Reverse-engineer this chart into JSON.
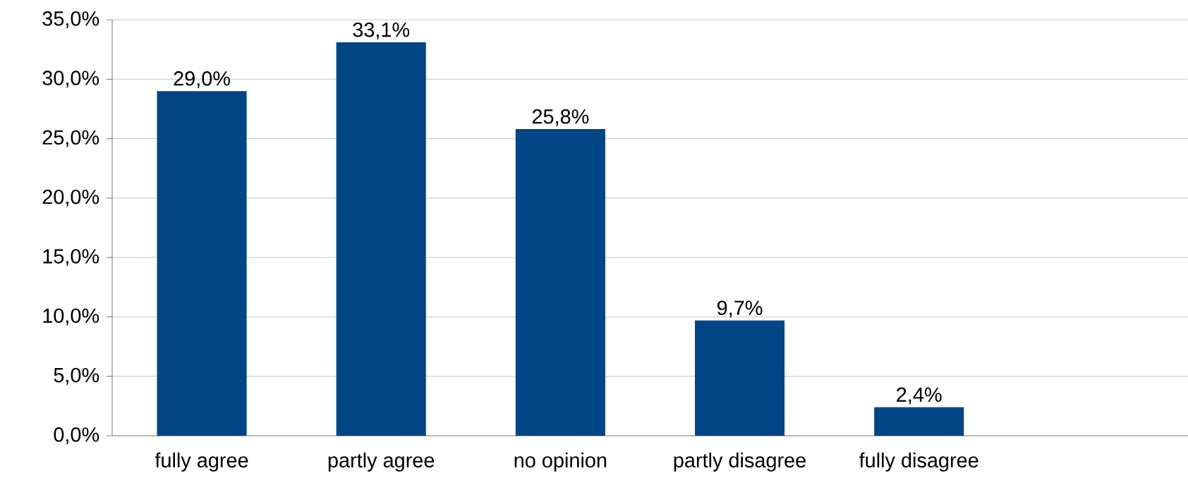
{
  "chart_data": {
    "type": "bar",
    "categories": [
      "fully agree",
      "partly agree",
      "no opinion",
      "partly disagree",
      "fully disagree",
      null
    ],
    "values": [
      29.0,
      33.1,
      25.8,
      9.7,
      2.4,
      null
    ],
    "value_labels": [
      "29,0%",
      "33,1%",
      "25,8%",
      "9,7%",
      "2,4%",
      null
    ],
    "color": "#004586",
    "ylim": [
      0,
      35
    ],
    "yticks": [
      {
        "value": 0,
        "label": "0,0%"
      },
      {
        "value": 5,
        "label": "5,0%"
      },
      {
        "value": 10,
        "label": "10,0%"
      },
      {
        "value": 15,
        "label": "15,0%"
      },
      {
        "value": 20,
        "label": "20,0%"
      },
      {
        "value": 25,
        "label": "25,0%"
      },
      {
        "value": 30,
        "label": "30,0%"
      },
      {
        "value": 35,
        "label": "35,0%"
      }
    ],
    "grid": "y"
  }
}
